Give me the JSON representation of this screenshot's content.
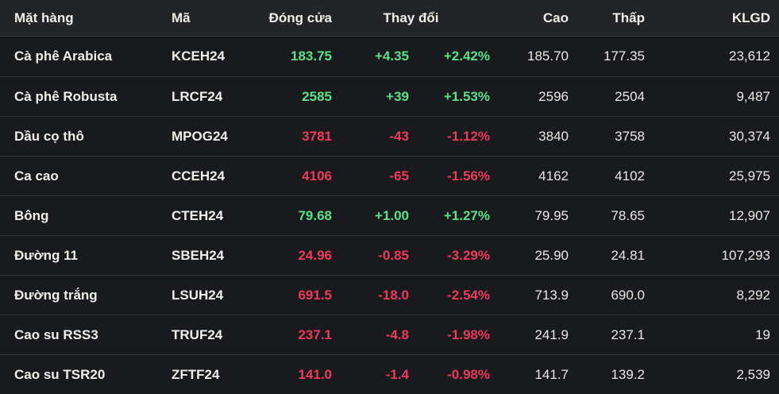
{
  "colors": {
    "up": "#5ce087",
    "down": "#ee3a5a"
  },
  "table": {
    "headers": {
      "name": "Mặt hàng",
      "code": "Mã",
      "close": "Đóng cửa",
      "change": "Thay đổi",
      "high": "Cao",
      "low": "Thấp",
      "volume": "KLGD"
    },
    "rows": [
      {
        "name": "Cà phê Arabica",
        "code": "KCEH24",
        "close": "183.75",
        "change": "+4.35",
        "pct": "+2.42%",
        "high": "185.70",
        "low": "177.35",
        "volume": "23,612",
        "trend": "up"
      },
      {
        "name": "Cà phê Robusta",
        "code": "LRCF24",
        "close": "2585",
        "change": "+39",
        "pct": "+1.53%",
        "high": "2596",
        "low": "2504",
        "volume": "9,487",
        "trend": "up"
      },
      {
        "name": "Dầu cọ thô",
        "code": "MPOG24",
        "close": "3781",
        "change": "-43",
        "pct": "-1.12%",
        "high": "3840",
        "low": "3758",
        "volume": "30,374",
        "trend": "down"
      },
      {
        "name": "Ca cao",
        "code": "CCEH24",
        "close": "4106",
        "change": "-65",
        "pct": "-1.56%",
        "high": "4162",
        "low": "4102",
        "volume": "25,975",
        "trend": "down"
      },
      {
        "name": "Bông",
        "code": "CTEH24",
        "close": "79.68",
        "change": "+1.00",
        "pct": "+1.27%",
        "high": "79.95",
        "low": "78.65",
        "volume": "12,907",
        "trend": "up"
      },
      {
        "name": "Đường 11",
        "code": "SBEH24",
        "close": "24.96",
        "change": "-0.85",
        "pct": "-3.29%",
        "high": "25.90",
        "low": "24.81",
        "volume": "107,293",
        "trend": "down"
      },
      {
        "name": "Đường trắng",
        "code": "LSUH24",
        "close": "691.5",
        "change": "-18.0",
        "pct": "-2.54%",
        "high": "713.9",
        "low": "690.0",
        "volume": "8,292",
        "trend": "down"
      },
      {
        "name": "Cao su RSS3",
        "code": "TRUF24",
        "close": "237.1",
        "change": "-4.8",
        "pct": "-1.98%",
        "high": "241.9",
        "low": "237.1",
        "volume": "19",
        "trend": "down"
      },
      {
        "name": "Cao su TSR20",
        "code": "ZFTF24",
        "close": "141.0",
        "change": "-1.4",
        "pct": "-0.98%",
        "high": "141.7",
        "low": "139.2",
        "volume": "2,539",
        "trend": "down"
      }
    ]
  }
}
